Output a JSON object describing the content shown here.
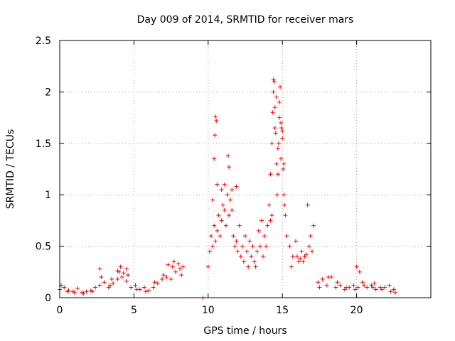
{
  "chart_data": {
    "type": "scatter",
    "title": "Day 009 of 2014, SRMTID for receiver mars",
    "xlabel": "GPS time / hours",
    "ylabel": "SRMTID / TECUs",
    "xlim": [
      0,
      25
    ],
    "ylim": [
      0,
      2.5
    ],
    "xticks": [
      0,
      5,
      10,
      15,
      20
    ],
    "xtick_labels": [
      "0",
      "5",
      "10",
      "15",
      "20"
    ],
    "yticks": [
      0,
      0.5,
      1,
      1.5,
      2,
      2.5
    ],
    "ytick_labels": [
      "0",
      "0.5",
      "1",
      "1.5",
      "2",
      "2.5"
    ],
    "grid": true,
    "marker": "plus",
    "series": [
      {
        "name": "SRMTID",
        "color": "#ff0000",
        "x": [
          0.0,
          0.3,
          0.6,
          0.9,
          1.2,
          1.5,
          1.8,
          2.1,
          2.4,
          2.7,
          3.0,
          3.3,
          3.6,
          3.9,
          4.2,
          4.5,
          4.8,
          5.1,
          5.4,
          5.7,
          6.0,
          6.3,
          6.6,
          6.9,
          7.2,
          7.5,
          7.8,
          8.1,
          8.3,
          0.1,
          0.5,
          1.0,
          1.6,
          2.2,
          2.8,
          3.4,
          4.0,
          4.6,
          5.2,
          5.8,
          6.4,
          7.0,
          7.6,
          8.2,
          2.7,
          3.9,
          4.1,
          4.3,
          4.5,
          3.5,
          7.3,
          7.7,
          8.0,
          9.65,
          10.0,
          10.1,
          10.2,
          10.3,
          10.4,
          10.5,
          10.6,
          10.7,
          10.8,
          10.9,
          11.0,
          11.1,
          11.2,
          11.3,
          11.4,
          11.5,
          11.6,
          11.7,
          11.8,
          11.9,
          12.0,
          12.1,
          12.2,
          12.3,
          12.4,
          12.5,
          12.6,
          12.7,
          12.8,
          12.9,
          13.0,
          13.1,
          13.2,
          13.3,
          13.4,
          13.5,
          13.6,
          13.7,
          13.8,
          13.9,
          14.0,
          10.45,
          10.5,
          10.55,
          10.4,
          11.35,
          11.4,
          10.3,
          10.6,
          10.9,
          11.1,
          11.6,
          11.9,
          14.1,
          14.2,
          14.3,
          14.35,
          14.4,
          14.45,
          14.5,
          14.55,
          14.6,
          14.65,
          14.7,
          14.75,
          14.8,
          14.85,
          14.9,
          14.95,
          15.0,
          15.05,
          15.1,
          15.15,
          15.2,
          14.3,
          14.5,
          14.7,
          14.9,
          15.1,
          14.4,
          14.6,
          14.8,
          15.0,
          14.2,
          15.3,
          15.5,
          15.7,
          15.9,
          16.1,
          16.3,
          16.5,
          16.7,
          16.9,
          17.1,
          16.0,
          16.4,
          16.8,
          17.0,
          15.6,
          16.2,
          16.6,
          17.4,
          17.7,
          18.0,
          18.3,
          18.6,
          18.9,
          19.2,
          19.5,
          19.8,
          20.1,
          20.4,
          20.7,
          21.0,
          21.3,
          21.6,
          21.9,
          22.2,
          22.5,
          17.5,
          18.1,
          18.7,
          19.3,
          19.9,
          20.5,
          21.1,
          21.7,
          22.3,
          22.6,
          20.0,
          20.2,
          21.2
        ],
        "y": [
          0.08,
          0.1,
          0.07,
          0.06,
          0.09,
          0.05,
          0.06,
          0.07,
          0.1,
          0.12,
          0.15,
          0.1,
          0.14,
          0.18,
          0.2,
          0.16,
          0.1,
          0.12,
          0.08,
          0.1,
          0.07,
          0.1,
          0.14,
          0.18,
          0.2,
          0.18,
          0.25,
          0.28,
          0.3,
          0.12,
          0.06,
          0.05,
          0.04,
          0.06,
          0.2,
          0.12,
          0.25,
          0.22,
          0.08,
          0.06,
          0.15,
          0.22,
          0.3,
          0.22,
          0.28,
          0.26,
          0.3,
          0.24,
          0.28,
          0.18,
          0.32,
          0.35,
          0.33,
          0.0,
          0.3,
          0.45,
          0.6,
          0.5,
          0.7,
          0.55,
          0.65,
          0.8,
          0.6,
          0.75,
          0.9,
          0.85,
          0.7,
          1.0,
          0.8,
          0.95,
          0.85,
          0.6,
          0.5,
          0.55,
          0.45,
          0.7,
          0.4,
          0.5,
          0.35,
          0.6,
          0.45,
          0.3,
          0.55,
          0.4,
          0.5,
          0.35,
          0.3,
          0.45,
          0.65,
          0.5,
          0.75,
          0.4,
          0.6,
          0.5,
          0.7,
          1.58,
          1.76,
          1.72,
          1.35,
          1.38,
          1.27,
          0.95,
          1.1,
          1.05,
          1.1,
          1.05,
          1.08,
          0.9,
          1.2,
          1.5,
          1.8,
          2.0,
          2.1,
          1.85,
          1.6,
          1.3,
          1.0,
          1.2,
          1.5,
          1.9,
          2.05,
          1.7,
          1.65,
          1.55,
          1.25,
          1.0,
          0.9,
          0.8,
          0.8,
          1.65,
          1.45,
          1.35,
          1.3,
          2.12,
          1.95,
          1.75,
          1.62,
          0.75,
          0.6,
          0.5,
          0.4,
          0.55,
          0.35,
          0.45,
          0.4,
          0.9,
          0.6,
          0.7,
          0.4,
          0.35,
          0.5,
          0.45,
          0.3,
          0.38,
          0.42,
          0.15,
          0.18,
          0.12,
          0.2,
          0.1,
          0.12,
          0.08,
          0.1,
          0.12,
          0.1,
          0.15,
          0.1,
          0.12,
          0.08,
          0.1,
          0.1,
          0.12,
          0.08,
          0.1,
          0.2,
          0.15,
          0.1,
          0.08,
          0.12,
          0.1,
          0.08,
          0.06,
          0.05,
          0.3,
          0.25,
          0.14
        ]
      }
    ]
  }
}
